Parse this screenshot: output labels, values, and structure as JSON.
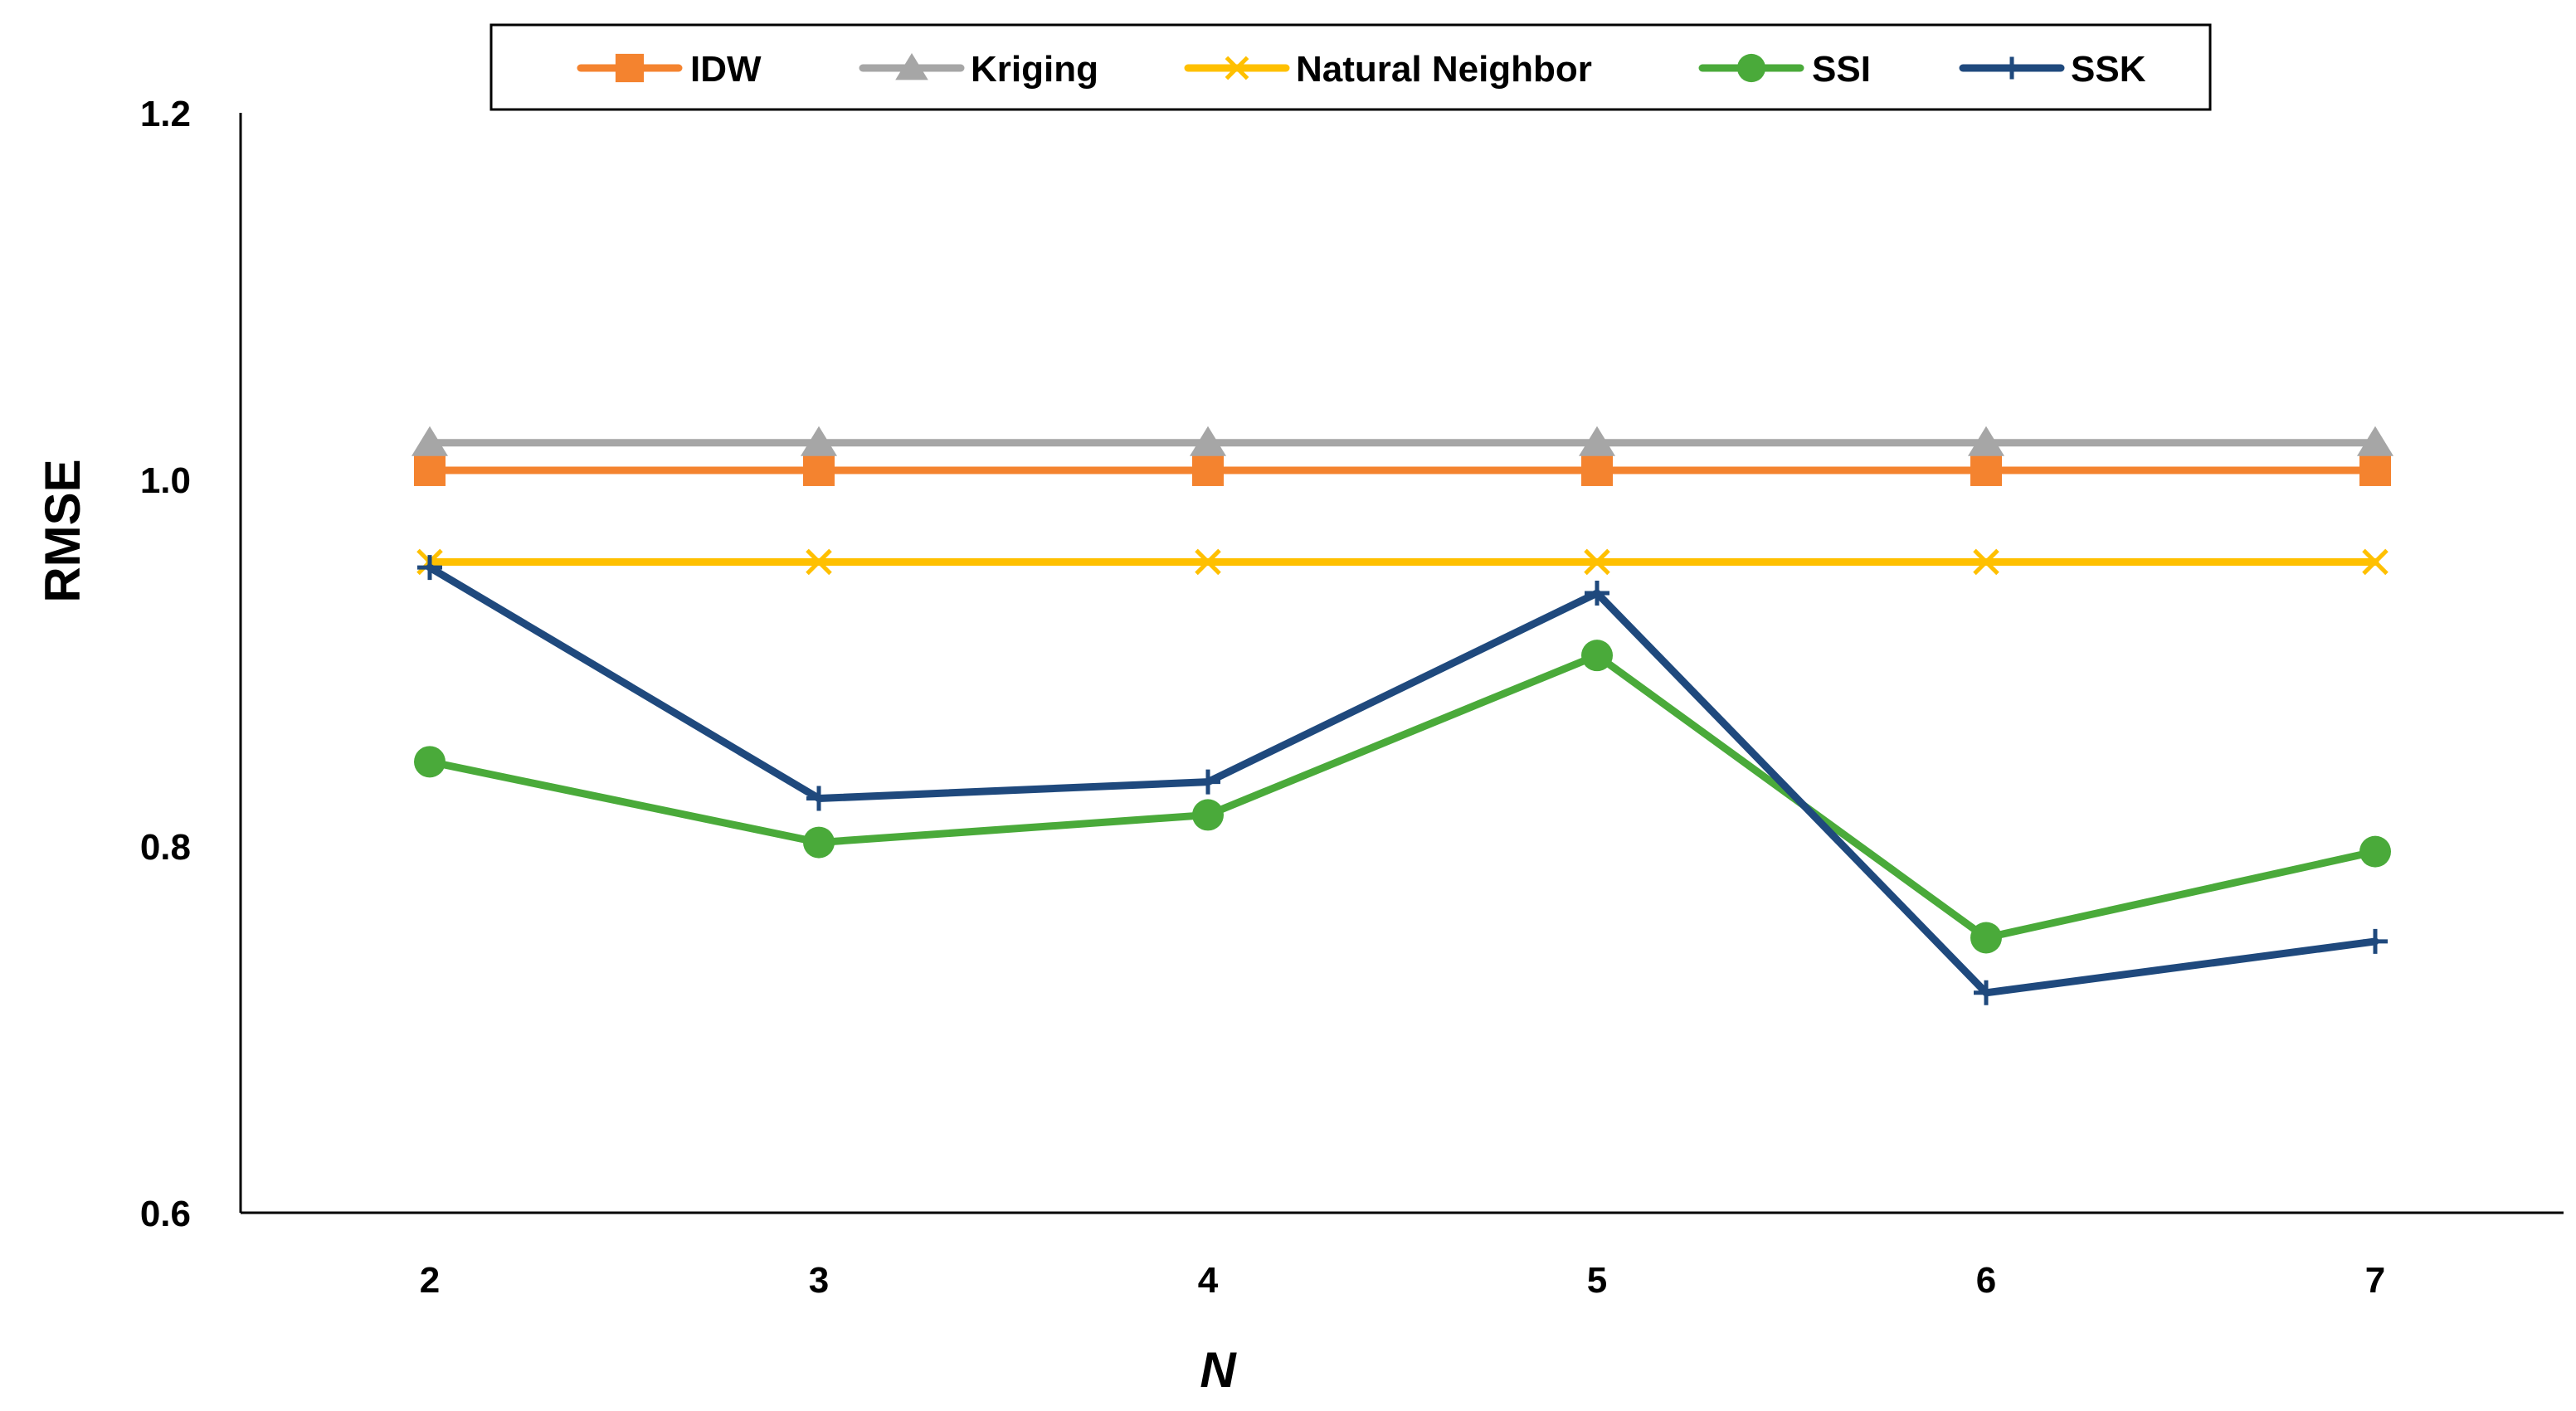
{
  "chart_data": {
    "type": "line",
    "title": "",
    "xlabel": "N",
    "ylabel": "RMSE",
    "x": [
      2,
      3,
      4,
      5,
      6,
      7
    ],
    "x_tick_labels": [
      "2",
      "3",
      "4",
      "5",
      "6",
      "7"
    ],
    "y_tick_labels": [
      "0.6",
      "0.8",
      "1.0",
      "1.2"
    ],
    "y_ticks": [
      0.6,
      0.8,
      1.0,
      1.2
    ],
    "ylim": [
      0.6,
      1.2
    ],
    "grid": false,
    "legend_position": "top-center",
    "series": [
      {
        "name": "IDW",
        "color": "#F4832F",
        "marker": "square",
        "values": [
          1.005,
          1.005,
          1.005,
          1.005,
          1.005,
          1.005
        ]
      },
      {
        "name": "Kriging",
        "color": "#A6A6A6",
        "marker": "triangle",
        "values": [
          1.02,
          1.02,
          1.02,
          1.02,
          1.02,
          1.02
        ]
      },
      {
        "name": "Natural Neighbor",
        "color": "#FFC000",
        "marker": "x",
        "values": [
          0.955,
          0.955,
          0.955,
          0.955,
          0.955,
          0.955
        ]
      },
      {
        "name": "SSI",
        "color": "#4AAA3A",
        "marker": "circle",
        "values": [
          0.846,
          0.802,
          0.817,
          0.904,
          0.75,
          0.797
        ]
      },
      {
        "name": "SSK",
        "color": "#1F497D",
        "marker": "plus",
        "values": [
          0.952,
          0.826,
          0.835,
          0.938,
          0.72,
          0.748
        ]
      }
    ]
  }
}
